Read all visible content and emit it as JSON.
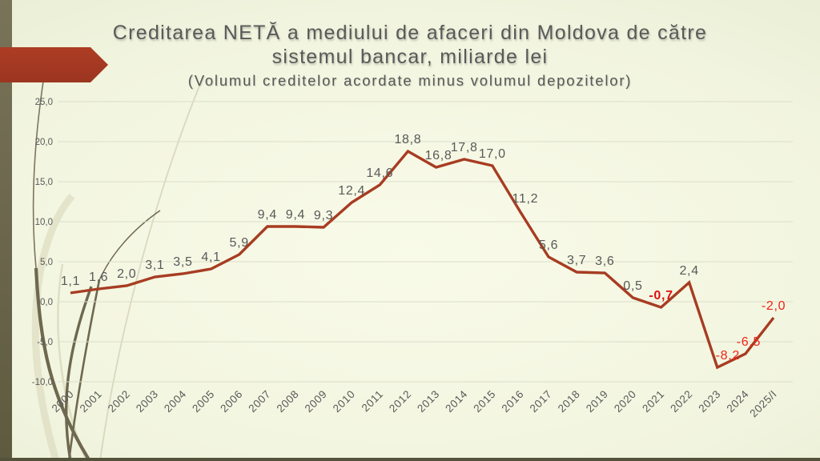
{
  "slide": {
    "title_line1": "Creditarea NETĂ a mediului de afaceri din Moldova de către",
    "title_line2": "sistemul bancar, miliarde lei",
    "subtitle": "(Volumul creditelor acordate minus volumul depozitelor)"
  },
  "colors": {
    "line": "#a73c22",
    "arrow": "#a63b24",
    "label_gray": "#595959",
    "label_red": "#ee2418",
    "label_red_bold": "#e01010",
    "grid": "#dbdeca",
    "side_band": "#6b6550",
    "flourish_dark": "#6e684f",
    "flourish_pale": "#ccc8a8"
  },
  "chart_data": {
    "type": "line",
    "x": [
      "2000",
      "2001",
      "2002",
      "2003",
      "2004",
      "2005",
      "2006",
      "2007",
      "2008",
      "2009",
      "2010",
      "2011",
      "2012",
      "2013",
      "2014",
      "2015",
      "2016",
      "2017",
      "2018",
      "2019",
      "2020",
      "2021",
      "2022",
      "2023",
      "2024",
      "2025/I"
    ],
    "series": [
      {
        "name": "Creditarea netă a mediului de afaceri, miliarde lei",
        "values": [
          1.1,
          1.6,
          2.0,
          3.1,
          3.5,
          4.1,
          5.9,
          9.4,
          9.4,
          9.3,
          12.4,
          14.6,
          18.8,
          16.8,
          17.8,
          17.0,
          11.2,
          5.6,
          3.7,
          3.6,
          0.5,
          -0.7,
          2.4,
          -8.2,
          -6.5,
          -2.0
        ]
      }
    ],
    "labels": [
      "1,1",
      "1,6",
      "2,0",
      "3,1",
      "3,5",
      "4,1",
      "5,9",
      "9,4",
      "9,4",
      "9,3",
      "12,4",
      "14,6",
      "18,8",
      "16,8",
      "17,8",
      "17,0",
      "11,2",
      "5,6",
      "3,7",
      "3,6",
      "0,5",
      "-0,7",
      "2,4",
      "-8,2",
      "-6,5",
      "-2,0"
    ],
    "red_label_indices": [
      21,
      23,
      24,
      25
    ],
    "bold_label_indices": [
      21
    ],
    "ylim": [
      -10,
      25
    ],
    "ytick_step": 5,
    "grid": true,
    "legend": false,
    "title": "Creditarea NETĂ a mediului de afaceri din Moldova de către sistemul bancar, miliarde lei",
    "subtitle": "(Volumul creditelor acordate minus volumul depozitelor)"
  }
}
